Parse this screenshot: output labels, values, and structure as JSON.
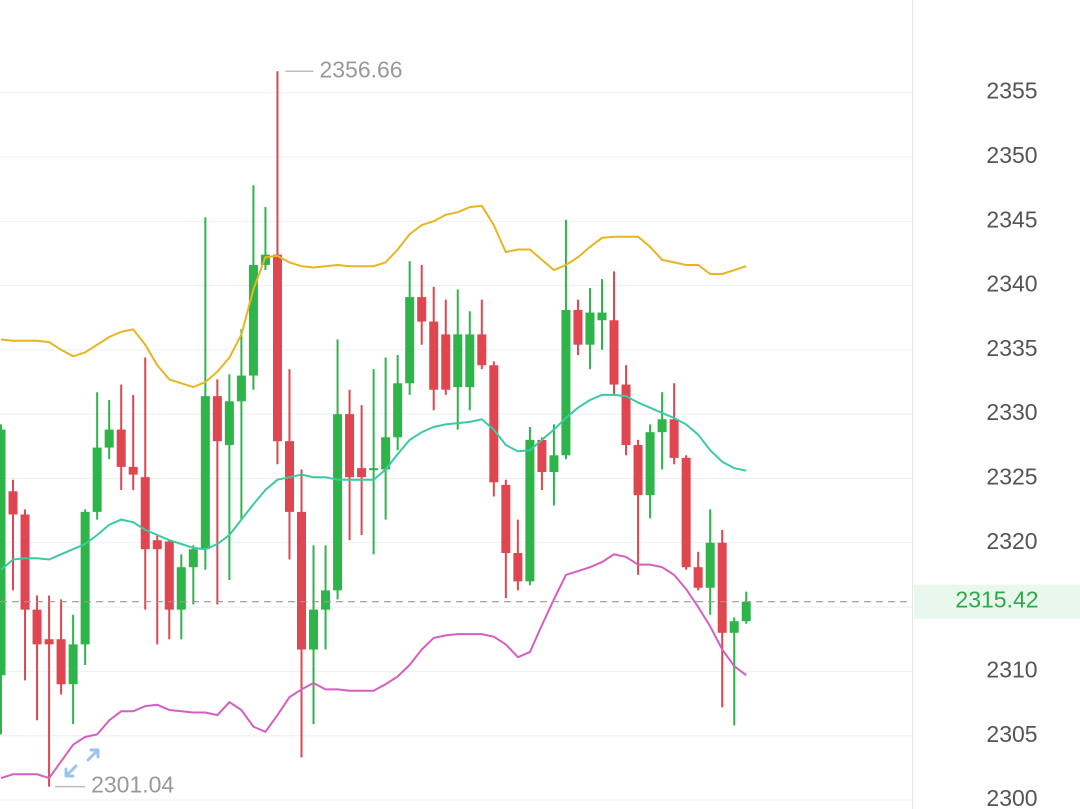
{
  "chart_data": {
    "type": "candlestick",
    "up_color": "#2db54a",
    "down_color": "#e0464f",
    "open": [
      2309.7,
      2324.0,
      2322.2,
      2314.8,
      2312.5,
      2312.5,
      2309.0,
      2312.1,
      2322.4,
      2327.4,
      2328.8,
      2325.9,
      2325.1,
      2320.2,
      2320.1,
      2314.8,
      2318.1,
      2319.5,
      2331.4,
      2327.6,
      2331.0,
      2333.0,
      2341.6,
      2342.4,
      2327.9,
      2322.4,
      2311.7,
      2314.8,
      2316.3,
      2330.0,
      2325.8,
      2325.7,
      2325.7,
      2328.2,
      2332.4,
      2339.1,
      2337.2,
      2336.2,
      2332.1,
      2332.1,
      2336.2,
      2333.8,
      2324.5,
      2319.2,
      2317.0,
      2328.0,
      2325.5,
      2326.8,
      2338.1,
      2335.4,
      2337.3,
      2337.3,
      2332.3,
      2327.6,
      2323.7,
      2328.6,
      2329.6,
      2326.6,
      2318.1,
      2316.5,
      2320.0,
      2313.0,
      2313.9
    ],
    "high": [
      2329.2,
      2324.9,
      2322.6,
      2315.9,
      2315.9,
      2315.6,
      2314.4,
      2322.6,
      2331.7,
      2331.1,
      2332.3,
      2331.5,
      2334.4,
      2320.6,
      2320.2,
      2319.1,
      2319.8,
      2345.3,
      2332.7,
      2333.1,
      2336.6,
      2347.8,
      2346.1,
      2356.66,
      2333.5,
      2325.7,
      2319.8,
      2319.8,
      2335.8,
      2331.9,
      2330.7,
      2333.5,
      2334.4,
      2334.6,
      2341.9,
      2341.6,
      2339.9,
      2338.9,
      2339.7,
      2338.0,
      2338.9,
      2334.1,
      2324.9,
      2321.8,
      2329.0,
      2328.2,
      2329.2,
      2345.1,
      2338.9,
      2339.8,
      2340.5,
      2341.1,
      2333.8,
      2328.0,
      2329.2,
      2331.7,
      2332.4,
      2326.8,
      2319.3,
      2322.6,
      2321.0,
      2314.2,
      2316.2
    ],
    "low": [
      2305.1,
      2316.3,
      2309.3,
      2306.2,
      2301.04,
      2308.2,
      2305.9,
      2310.5,
      2321.8,
      2326.5,
      2324.1,
      2324.1,
      2314.8,
      2312.1,
      2312.5,
      2312.5,
      2315.2,
      2317.9,
      2315.2,
      2317.1,
      2321.8,
      2331.9,
      2341.2,
      2326.1,
      2318.7,
      2303.3,
      2305.9,
      2311.7,
      2315.6,
      2320.2,
      2320.6,
      2319.1,
      2321.8,
      2327.2,
      2331.5,
      2335.4,
      2330.3,
      2331.5,
      2328.8,
      2330.3,
      2333.5,
      2323.6,
      2315.7,
      2316.3,
      2316.7,
      2324.1,
      2322.9,
      2326.5,
      2334.6,
      2333.5,
      2335.0,
      2331.5,
      2326.8,
      2317.5,
      2321.9,
      2325.7,
      2326.1,
      2317.9,
      2316.3,
      2314.4,
      2307.2,
      2305.8,
      2313.7
    ],
    "close": [
      2328.8,
      2322.2,
      2314.8,
      2312.1,
      2312.1,
      2309.0,
      2312.1,
      2322.4,
      2327.4,
      2328.8,
      2325.9,
      2325.3,
      2319.5,
      2319.5,
      2314.8,
      2318.1,
      2319.5,
      2331.4,
      2327.9,
      2331.0,
      2333.0,
      2341.6,
      2342.4,
      2327.9,
      2322.4,
      2311.7,
      2314.8,
      2316.3,
      2330.0,
      2325.1,
      2325.1,
      2325.8,
      2328.2,
      2332.4,
      2339.1,
      2337.2,
      2331.9,
      2331.9,
      2336.2,
      2336.2,
      2333.8,
      2324.7,
      2319.2,
      2317.0,
      2328.0,
      2325.5,
      2326.8,
      2338.1,
      2335.4,
      2337.9,
      2337.9,
      2332.3,
      2327.6,
      2323.7,
      2328.6,
      2329.6,
      2326.6,
      2318.1,
      2316.5,
      2320.0,
      2313.0,
      2313.9,
      2315.42
    ],
    "upper_band": {
      "color": "#e8b520",
      "values": [
        2335.8,
        2335.7,
        2335.7,
        2335.7,
        2335.6,
        2335.0,
        2334.5,
        2334.8,
        2335.4,
        2336.0,
        2336.4,
        2336.6,
        2335.4,
        2333.8,
        2332.7,
        2332.4,
        2332.1,
        2332.5,
        2333.3,
        2334.4,
        2336.2,
        2339.7,
        2342.2,
        2342.3,
        2341.8,
        2341.5,
        2341.4,
        2341.5,
        2341.6,
        2341.5,
        2341.5,
        2341.5,
        2341.8,
        2342.8,
        2344.0,
        2344.7,
        2345.0,
        2345.5,
        2345.7,
        2346.1,
        2346.2,
        2344.7,
        2342.6,
        2342.8,
        2342.8,
        2342.0,
        2341.2,
        2341.6,
        2342.2,
        2343.0,
        2343.7,
        2343.8,
        2343.8,
        2343.8,
        2343.0,
        2342.0,
        2341.8,
        2341.6,
        2341.6,
        2340.9,
        2340.9,
        2341.2,
        2341.5
      ]
    },
    "middle_band": {
      "color": "#3cc9a5",
      "values": [
        2317.9,
        2318.7,
        2318.8,
        2318.8,
        2318.7,
        2319.1,
        2319.5,
        2319.9,
        2320.6,
        2321.4,
        2321.8,
        2321.6,
        2321.0,
        2320.6,
        2320.2,
        2319.9,
        2319.6,
        2319.5,
        2319.9,
        2320.6,
        2321.8,
        2323.0,
        2324.1,
        2324.9,
        2325.1,
        2325.3,
        2325.1,
        2325.1,
        2324.9,
        2324.9,
        2324.9,
        2324.9,
        2325.7,
        2326.9,
        2328.0,
        2328.6,
        2329.0,
        2329.2,
        2329.3,
        2329.4,
        2329.6,
        2328.8,
        2327.6,
        2327.1,
        2327.2,
        2328.0,
        2328.8,
        2329.7,
        2330.5,
        2331.1,
        2331.5,
        2331.5,
        2331.4,
        2330.9,
        2330.5,
        2330.1,
        2329.7,
        2329.2,
        2328.4,
        2327.2,
        2326.3,
        2325.8,
        2325.6
      ]
    },
    "lower_band": {
      "color": "#d45fc0",
      "values": [
        2301.7,
        2302.0,
        2302.0,
        2302.0,
        2301.7,
        2303.0,
        2304.3,
        2304.9,
        2305.1,
        2306.2,
        2306.9,
        2306.9,
        2307.3,
        2307.4,
        2307.0,
        2306.9,
        2306.8,
        2306.8,
        2306.6,
        2307.6,
        2307.0,
        2305.7,
        2305.3,
        2306.6,
        2308.0,
        2308.6,
        2309.1,
        2308.6,
        2308.6,
        2308.5,
        2308.5,
        2308.5,
        2309.0,
        2309.6,
        2310.5,
        2311.7,
        2312.6,
        2312.8,
        2312.9,
        2312.9,
        2312.9,
        2312.7,
        2312.1,
        2311.1,
        2311.5,
        2313.6,
        2315.6,
        2317.5,
        2317.8,
        2318.1,
        2318.5,
        2319.1,
        2318.9,
        2318.3,
        2318.3,
        2318.1,
        2317.5,
        2316.4,
        2315.0,
        2313.5,
        2311.7,
        2310.4,
        2309.7
      ]
    },
    "ylim": [
      2299.3,
      2362.2
    ],
    "yticks": [
      2300,
      2305,
      2310,
      2315,
      2320,
      2325,
      2330,
      2335,
      2340,
      2345,
      2350,
      2355
    ],
    "grid": true
  }
}
